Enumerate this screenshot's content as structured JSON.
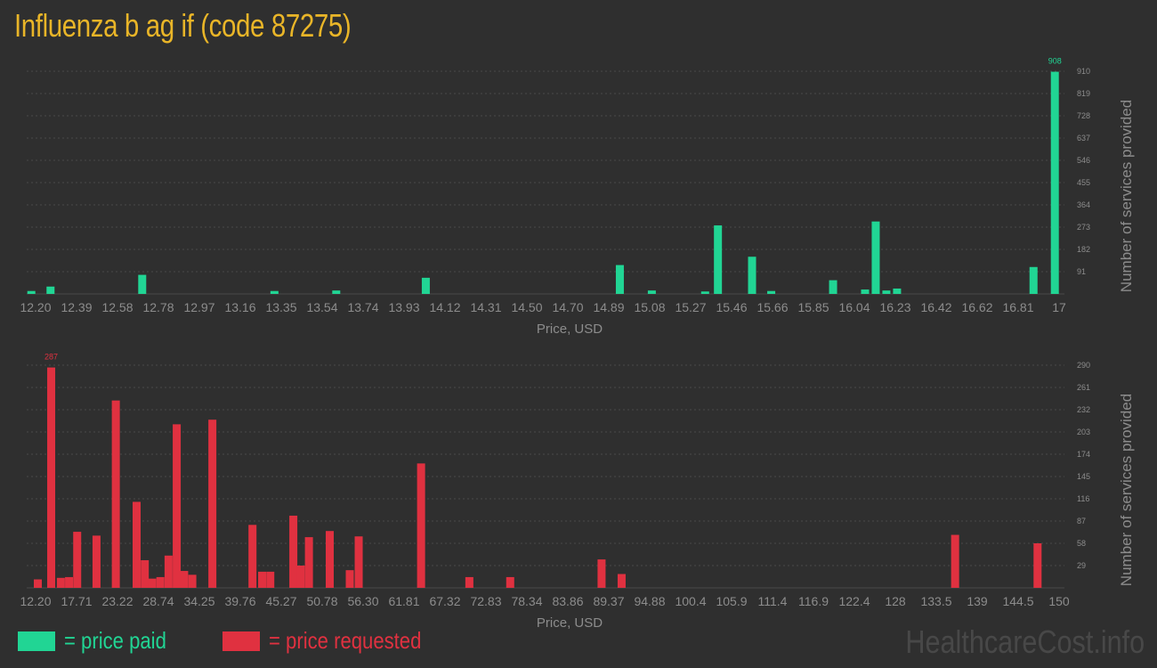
{
  "title": "Influenza b ag if (code 87275)",
  "colors": {
    "paid": "#21d594",
    "requested": "#e03140",
    "title": "#e9b528",
    "axis_text": "#8c8c8c",
    "grid": "#4a4a4a"
  },
  "legend": {
    "paid": "= price paid",
    "requested": "= price requested"
  },
  "watermark": "HealthcareCost.info",
  "chart_data": [
    {
      "type": "bar",
      "series_name": "price paid",
      "xlabel": "Price, USD",
      "ylabel": "Number of services provided",
      "xlim": [
        12.2,
        17
      ],
      "ylim": [
        0,
        910
      ],
      "xticks": [
        "12.20",
        "12.39",
        "12.58",
        "12.78",
        "12.97",
        "13.16",
        "13.35",
        "13.54",
        "13.74",
        "13.93",
        "14.12",
        "14.31",
        "14.50",
        "14.70",
        "14.89",
        "15.08",
        "15.27",
        "15.46",
        "15.66",
        "15.85",
        "16.04",
        "16.23",
        "16.42",
        "16.62",
        "16.81",
        "17"
      ],
      "yticks": [
        91,
        182,
        273,
        364,
        455,
        546,
        637,
        728,
        819,
        910
      ],
      "max_label": "908",
      "bars": [
        {
          "x": 12.18,
          "y": 12
        },
        {
          "x": 12.27,
          "y": 30
        },
        {
          "x": 12.7,
          "y": 78
        },
        {
          "x": 13.32,
          "y": 12
        },
        {
          "x": 13.61,
          "y": 14
        },
        {
          "x": 14.03,
          "y": 66
        },
        {
          "x": 14.94,
          "y": 118
        },
        {
          "x": 15.09,
          "y": 14
        },
        {
          "x": 15.34,
          "y": 10
        },
        {
          "x": 15.4,
          "y": 280
        },
        {
          "x": 15.56,
          "y": 152
        },
        {
          "x": 15.65,
          "y": 12
        },
        {
          "x": 15.94,
          "y": 56
        },
        {
          "x": 16.09,
          "y": 18
        },
        {
          "x": 16.14,
          "y": 296
        },
        {
          "x": 16.19,
          "y": 14
        },
        {
          "x": 16.24,
          "y": 22
        },
        {
          "x": 16.88,
          "y": 110
        },
        {
          "x": 16.98,
          "y": 908
        }
      ]
    },
    {
      "type": "bar",
      "series_name": "price requested",
      "xlabel": "Price, USD",
      "ylabel": "Number of services provided",
      "xlim": [
        12.2,
        150
      ],
      "ylim": [
        0,
        290
      ],
      "xticks": [
        "12.20",
        "17.71",
        "23.22",
        "28.74",
        "34.25",
        "39.76",
        "45.27",
        "50.78",
        "56.30",
        "61.81",
        "67.32",
        "72.83",
        "78.34",
        "83.86",
        "89.37",
        "94.88",
        "100.4",
        "105.9",
        "111.4",
        "116.9",
        "122.4",
        "128",
        "133.5",
        "139",
        "144.5",
        "150"
      ],
      "yticks": [
        29,
        58,
        87,
        116,
        145,
        174,
        203,
        232,
        261,
        290
      ],
      "max_label": "287",
      "bars": [
        {
          "x": 12.5,
          "y": 11
        },
        {
          "x": 14.3,
          "y": 287
        },
        {
          "x": 15.6,
          "y": 13
        },
        {
          "x": 16.7,
          "y": 14
        },
        {
          "x": 17.8,
          "y": 73
        },
        {
          "x": 20.4,
          "y": 68
        },
        {
          "x": 23.0,
          "y": 244
        },
        {
          "x": 25.8,
          "y": 112
        },
        {
          "x": 26.9,
          "y": 36
        },
        {
          "x": 27.9,
          "y": 12
        },
        {
          "x": 29.0,
          "y": 14
        },
        {
          "x": 30.1,
          "y": 42
        },
        {
          "x": 31.2,
          "y": 213
        },
        {
          "x": 32.2,
          "y": 22
        },
        {
          "x": 33.3,
          "y": 17
        },
        {
          "x": 36.0,
          "y": 219
        },
        {
          "x": 41.4,
          "y": 82
        },
        {
          "x": 42.7,
          "y": 21
        },
        {
          "x": 43.8,
          "y": 21
        },
        {
          "x": 46.9,
          "y": 94
        },
        {
          "x": 47.9,
          "y": 29
        },
        {
          "x": 49.0,
          "y": 66
        },
        {
          "x": 51.8,
          "y": 74
        },
        {
          "x": 54.5,
          "y": 23
        },
        {
          "x": 55.7,
          "y": 67
        },
        {
          "x": 64.1,
          "y": 162
        },
        {
          "x": 70.6,
          "y": 14
        },
        {
          "x": 76.1,
          "y": 14
        },
        {
          "x": 88.4,
          "y": 37
        },
        {
          "x": 91.1,
          "y": 18
        },
        {
          "x": 136.0,
          "y": 69
        },
        {
          "x": 147.1,
          "y": 58
        }
      ]
    }
  ]
}
